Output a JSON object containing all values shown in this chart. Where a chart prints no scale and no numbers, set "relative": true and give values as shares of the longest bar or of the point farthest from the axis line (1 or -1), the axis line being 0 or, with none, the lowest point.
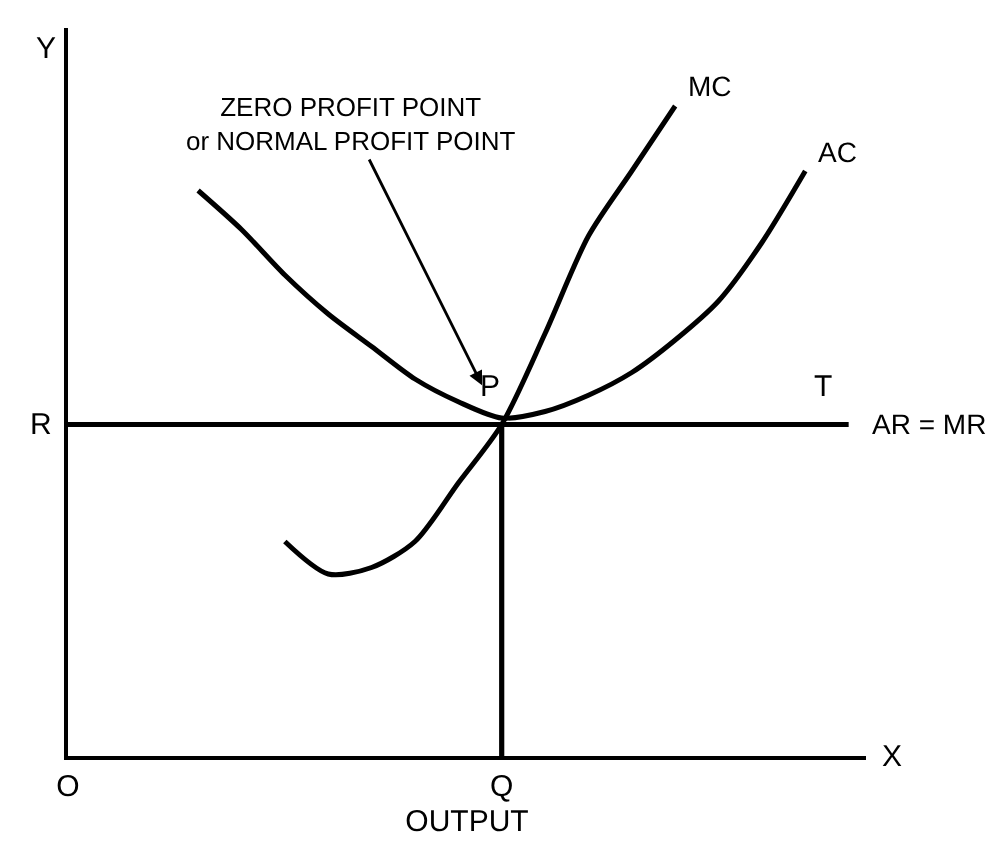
{
  "chart_data": {
    "type": "line",
    "relative": true,
    "xlabel": "OUTPUT",
    "categories": [
      "O",
      null,
      null,
      null,
      null,
      null,
      null,
      null,
      null,
      null,
      "Q",
      null,
      null,
      null,
      null,
      null,
      null,
      null,
      null
    ],
    "series": [
      {
        "name": "MC",
        "color": "#000000",
        "values": [
          null,
          null,
          null,
          null,
          null,
          0.33,
          0.28,
          0.29,
          0.33,
          0.42,
          0.51,
          0.65,
          0.8,
          0.9,
          1.0,
          null,
          null,
          null,
          null
        ]
      },
      {
        "name": "AC",
        "color": "#000000",
        "values": [
          null,
          null,
          null,
          0.87,
          0.81,
          0.74,
          0.68,
          0.63,
          0.58,
          0.545,
          0.52,
          0.53,
          0.555,
          0.59,
          0.64,
          0.7,
          0.79,
          0.9,
          null
        ]
      },
      {
        "name": "AR = MR",
        "color": "#000000",
        "values": [
          0.51,
          0.51,
          0.51,
          0.51,
          0.51,
          0.51,
          0.51,
          0.51,
          0.51,
          0.51,
          0.51,
          0.51,
          0.51,
          0.51,
          0.51,
          0.51,
          0.51,
          0.51,
          0.51
        ]
      },
      {
        "type": "bar",
        "color": "#000000",
        "values": [
          null,
          null,
          null,
          null,
          null,
          null,
          null,
          null,
          null,
          null,
          0.51,
          null,
          null,
          null,
          null,
          null,
          null,
          null,
          null
        ]
      }
    ],
    "annotations": [
      {
        "text": "ZERO PROFIT POINT\nor NORMAL PROFIT POINT",
        "x": "Q",
        "y": 0.51
      },
      {
        "text": "P",
        "x": "Q",
        "y": 0.51
      },
      {
        "text": "T",
        "y": 0.51
      },
      {
        "text": "R",
        "x": "O",
        "y": 0.51
      },
      "X",
      "Y"
    ]
  }
}
